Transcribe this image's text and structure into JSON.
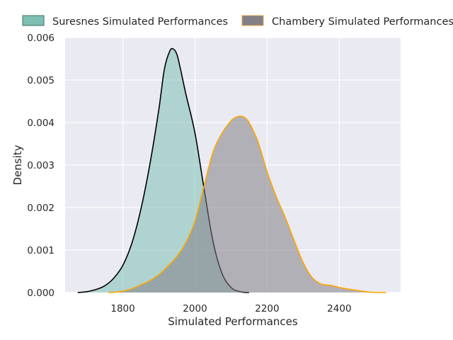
{
  "chart_data": {
    "type": "area",
    "xlabel": "Simulated Performances",
    "ylabel": "Density",
    "xlim": [
      1640,
      2570
    ],
    "ylim": [
      0,
      0.006
    ],
    "x_ticks": [
      1800,
      2000,
      2200,
      2400
    ],
    "x_tick_labels": [
      "1800",
      "2000",
      "2200",
      "2400"
    ],
    "y_ticks": [
      0,
      0.001,
      0.002,
      0.003,
      0.004,
      0.005,
      0.006
    ],
    "y_tick_labels": [
      "0.000",
      "0.001",
      "0.002",
      "0.003",
      "0.004",
      "0.005",
      "0.006"
    ],
    "grid": true,
    "legend_position": "top-center",
    "background_color": "#eaeaf2",
    "series": [
      {
        "name": "Suresnes Simulated Performances",
        "fill_color": "#7ebfb4",
        "line_color": "#000000",
        "x": [
          1675,
          1700,
          1725,
          1750,
          1775,
          1800,
          1825,
          1850,
          1875,
          1900,
          1915,
          1930,
          1940,
          1950,
          1960,
          1975,
          2000,
          2025,
          2050,
          2075,
          2100,
          2125,
          2150
        ],
        "y": [
          0.0,
          2e-05,
          7e-05,
          0.00016,
          0.00034,
          0.00064,
          0.00116,
          0.00196,
          0.00302,
          0.00432,
          0.00525,
          0.00568,
          0.00573,
          0.0056,
          0.00525,
          0.00466,
          0.00375,
          0.00245,
          0.0012,
          0.00045,
          0.00012,
          2e-05,
          0.0
        ]
      },
      {
        "name": "Chambery Simulated Performances",
        "fill_color": "#847f87",
        "line_color": "#ffa500",
        "x": [
          1760,
          1780,
          1800,
          1825,
          1850,
          1875,
          1900,
          1925,
          1950,
          1975,
          2000,
          2025,
          2050,
          2075,
          2100,
          2115,
          2125,
          2135,
          2150,
          2175,
          2200,
          2225,
          2250,
          2275,
          2300,
          2325,
          2350,
          2375,
          2400,
          2425,
          2450,
          2475,
          2500,
          2530
        ],
        "y": [
          0.0,
          1e-05,
          3e-05,
          9e-05,
          0.00018,
          0.00028,
          0.00042,
          0.00062,
          0.00085,
          0.00118,
          0.00168,
          0.0025,
          0.0033,
          0.00375,
          0.00404,
          0.00413,
          0.00415,
          0.00413,
          0.004,
          0.00354,
          0.00284,
          0.00226,
          0.00177,
          0.00122,
          0.0007,
          0.00035,
          0.0002,
          0.00017,
          0.00012,
          8e-05,
          5e-05,
          2e-05,
          0.0,
          0.0
        ]
      }
    ]
  }
}
